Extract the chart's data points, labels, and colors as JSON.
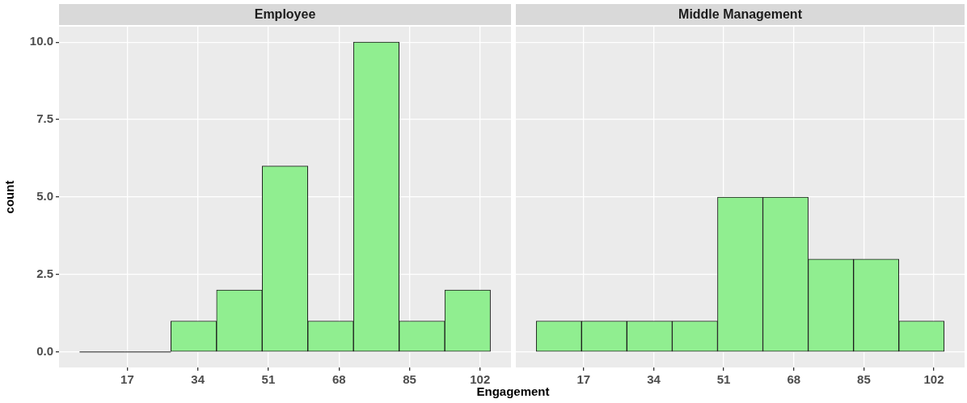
{
  "chart_data": [
    {
      "type": "histogram",
      "title": "Employee",
      "xlabel": "Engagement",
      "ylabel": "count",
      "bins": [
        5.5,
        16.5,
        27.5,
        38.5,
        49.5,
        60.5,
        71.5,
        82.5,
        93.5,
        104.5
      ],
      "values": [
        0,
        0,
        1,
        2,
        6,
        1,
        10,
        1,
        2
      ],
      "color": "#90ee90",
      "xlim": [
        0.55,
        109.45
      ],
      "ylim": [
        -0.5,
        10.5
      ],
      "xticks": [
        17,
        34,
        51,
        68,
        85,
        102
      ],
      "yticks": [
        {
          "value": 0,
          "label": "0.0"
        },
        {
          "value": 2.5,
          "label": "2.5"
        },
        {
          "value": 5,
          "label": "5.0"
        },
        {
          "value": 7.5,
          "label": "7.5"
        },
        {
          "value": 10,
          "label": "10.0"
        }
      ],
      "grid": true
    },
    {
      "type": "histogram",
      "title": "Middle Management",
      "bins": [
        5.5,
        16.5,
        27.5,
        38.5,
        49.5,
        60.5,
        71.5,
        82.5,
        93.5,
        104.5
      ],
      "values": [
        1,
        1,
        1,
        1,
        5,
        5,
        3,
        3,
        1
      ],
      "color": "#90ee90",
      "xlim": [
        0.55,
        109.45
      ],
      "ylim": [
        -0.5,
        10.5
      ],
      "xticks": [
        17,
        34,
        51,
        68,
        85,
        102
      ],
      "yticks": [
        0,
        2.5,
        5,
        7.5,
        10
      ],
      "grid": true,
      "tick_labels": "x"
    }
  ]
}
